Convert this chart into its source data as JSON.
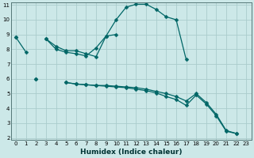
{
  "xlabel": "Humidex (Indice chaleur)",
  "x": [
    0,
    1,
    2,
    3,
    4,
    5,
    6,
    7,
    8,
    9,
    10,
    11,
    12,
    13,
    14,
    15,
    16,
    17,
    18,
    19,
    20,
    21,
    22,
    23
  ],
  "line1": [
    8.8,
    7.8,
    null,
    8.7,
    8.0,
    7.8,
    7.7,
    7.55,
    8.1,
    8.9,
    10.0,
    10.85,
    11.05,
    11.05,
    10.7,
    10.2,
    10.0,
    7.3,
    null,
    null,
    null,
    null,
    null,
    null
  ],
  "line2": [
    8.8,
    null,
    null,
    8.7,
    8.2,
    7.9,
    7.9,
    7.7,
    7.5,
    8.9,
    9.0,
    null,
    null,
    null,
    null,
    null,
    null,
    null,
    null,
    null,
    null,
    null,
    null,
    null
  ],
  "line3": [
    null,
    null,
    6.0,
    null,
    null,
    5.75,
    5.65,
    5.6,
    5.55,
    5.55,
    5.5,
    5.45,
    5.4,
    5.3,
    5.15,
    5.0,
    4.8,
    4.5,
    5.0,
    4.4,
    3.6,
    2.5,
    2.3,
    null
  ],
  "line4": [
    null,
    null,
    6.0,
    null,
    null,
    5.75,
    5.65,
    5.6,
    5.55,
    5.5,
    5.45,
    5.4,
    5.3,
    5.2,
    5.05,
    4.8,
    4.6,
    4.2,
    4.9,
    4.3,
    3.5,
    2.45,
    2.3,
    null
  ],
  "bg_color": "#cce8e8",
  "grid_color": "#aacccc",
  "line_color": "#006666",
  "ylim_min": 2,
  "ylim_max": 11,
  "xlim_min": 0,
  "xlim_max": 23,
  "yticks": [
    2,
    3,
    4,
    5,
    6,
    7,
    8,
    9,
    10,
    11
  ],
  "xticks": [
    0,
    1,
    2,
    3,
    4,
    5,
    6,
    7,
    8,
    9,
    10,
    11,
    12,
    13,
    14,
    15,
    16,
    17,
    18,
    19,
    20,
    21,
    22,
    23
  ],
  "tick_fontsize": 5.0,
  "xlabel_fontsize": 6.5,
  "marker_size": 2.5,
  "linewidth": 0.9
}
